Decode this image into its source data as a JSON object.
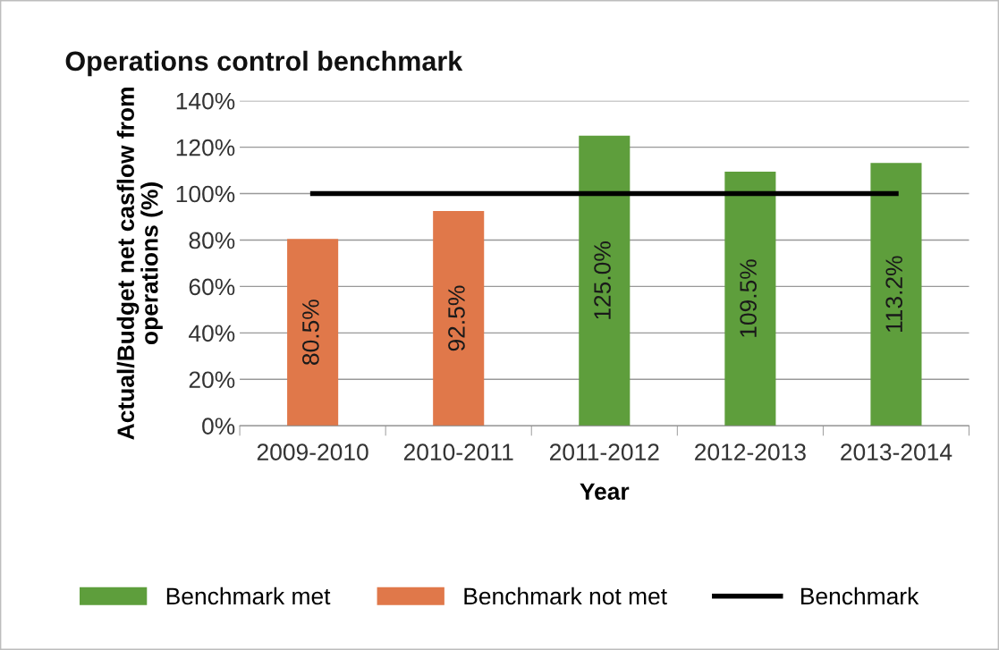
{
  "chart_data": {
    "type": "bar",
    "title": "Operations control benchmark",
    "xlabel": "Year",
    "ylabel": "Actual/Budget net casflow from operations (%)",
    "categories": [
      "2009-2010",
      "2010-2011",
      "2011-2012",
      "2012-2013",
      "2013-2014"
    ],
    "stacked": true,
    "series": [
      {
        "name": "Benchmark met",
        "color": "#5e9e3c",
        "values": [
          null,
          null,
          125.0,
          109.5,
          113.2
        ],
        "value_labels": [
          null,
          null,
          "125.0%",
          "109.5%",
          "113.2%"
        ]
      },
      {
        "name": "Benchmark not met",
        "color": "#e0784a",
        "values": [
          80.5,
          92.5,
          null,
          null,
          null
        ],
        "value_labels": [
          "80.5%",
          "92.5%",
          null,
          null,
          null
        ]
      },
      {
        "name": "Benchmark",
        "type": "line",
        "color": "#000000",
        "values": [
          100,
          100,
          100,
          100,
          100
        ]
      }
    ],
    "ylim": [
      0,
      140
    ],
    "yticks": [
      {
        "value": 0,
        "label": "0%"
      },
      {
        "value": 20,
        "label": "20%"
      },
      {
        "value": 40,
        "label": "40%"
      },
      {
        "value": 60,
        "label": "60%"
      },
      {
        "value": 80,
        "label": "80%"
      },
      {
        "value": 100,
        "label": "100%"
      },
      {
        "value": 120,
        "label": "120%"
      },
      {
        "value": 140,
        "label": "140%"
      }
    ],
    "grid": "y",
    "legend": "bottom",
    "marker": "none",
    "line_style": "solid"
  }
}
